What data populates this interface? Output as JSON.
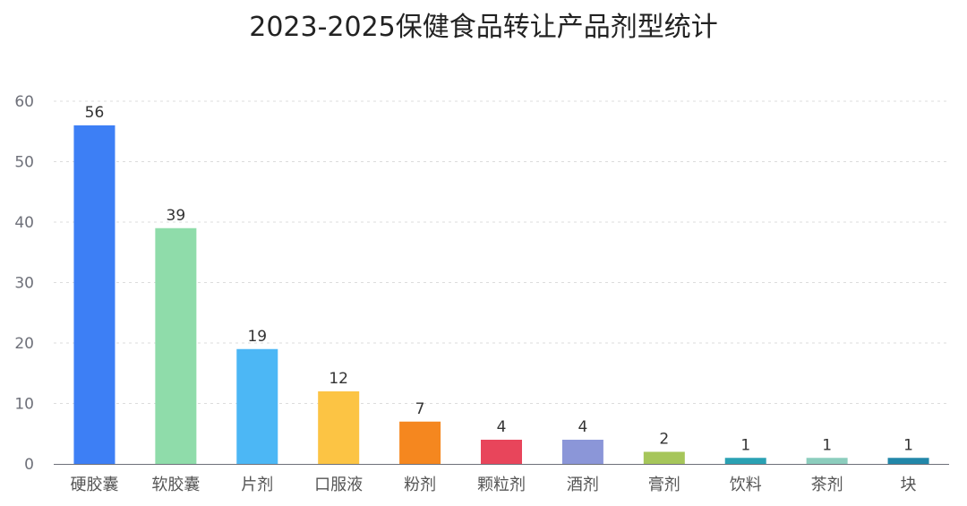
{
  "chart_data": {
    "type": "bar",
    "title": "2023-2025保健食品转让产品剂型统计",
    "xlabel": "",
    "ylabel": "",
    "categories": [
      "硬胶囊",
      "软胶囊",
      "片剂",
      "口服液",
      "粉剂",
      "颗粒剂",
      "酒剂",
      "膏剂",
      "饮料",
      "茶剂",
      "块"
    ],
    "values": [
      56,
      39,
      19,
      12,
      7,
      4,
      4,
      2,
      1,
      1,
      1
    ],
    "ylim": [
      0,
      60
    ],
    "yticks": [
      0,
      10,
      20,
      30,
      40,
      50,
      60
    ],
    "grid": true,
    "legend": "none",
    "colors": [
      "#3d7ff5",
      "#8fdcaa",
      "#4cb7f5",
      "#fcc444",
      "#f5871f",
      "#e8455b",
      "#8b96d8",
      "#a6c65a",
      "#2aa1b3",
      "#8ccdbd",
      "#2287a9"
    ]
  }
}
